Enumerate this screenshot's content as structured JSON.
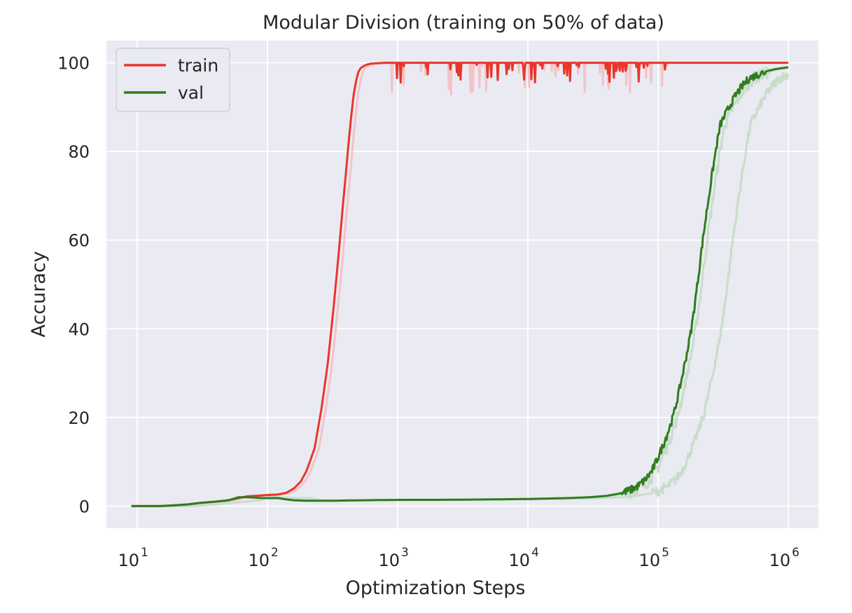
{
  "chart_data": {
    "type": "line",
    "title": "Modular Division (training on 50% of data)",
    "xlabel": "Optimization Steps",
    "ylabel": "Accuracy",
    "xscale": "log",
    "xlim": [
      5.8,
      1700000.0
    ],
    "ylim": [
      -5,
      105
    ],
    "xticks": [
      {
        "value": 10,
        "base": "10",
        "exp": "1"
      },
      {
        "value": 100,
        "base": "10",
        "exp": "2"
      },
      {
        "value": 1000,
        "base": "10",
        "exp": "3"
      },
      {
        "value": 10000,
        "base": "10",
        "exp": "4"
      },
      {
        "value": 100000,
        "base": "10",
        "exp": "5"
      },
      {
        "value": 1000000,
        "base": "10",
        "exp": "6"
      }
    ],
    "yticks": [
      0,
      20,
      40,
      60,
      80,
      100
    ],
    "grid": true,
    "legend": "top-left",
    "colors": {
      "background": "#eaeaf2",
      "train": "#e8362b",
      "val": "#2e7d1e",
      "train_raw": "#f2c4c8",
      "val_raw": "#c9dccb"
    },
    "series": [
      {
        "name": "train",
        "x": [
          9,
          12,
          15,
          20,
          25,
          30,
          40,
          50,
          60,
          70,
          80,
          90,
          100,
          120,
          140,
          160,
          180,
          200,
          230,
          260,
          290,
          320,
          350,
          380,
          400,
          420,
          440,
          460,
          480,
          500,
          520,
          550,
          580,
          620,
          700,
          800,
          1000,
          1500,
          2000,
          3000,
          5000,
          10000,
          20000,
          50000,
          100000,
          1000000
        ],
        "y": [
          0,
          0,
          0,
          0.2,
          0.4,
          0.7,
          1.0,
          1.3,
          1.8,
          2.2,
          2.3,
          2.4,
          2.5,
          2.6,
          3.0,
          4.0,
          5.5,
          8,
          13,
          22,
          32,
          44,
          56,
          68,
          75,
          82,
          88,
          93,
          96,
          98,
          98.8,
          99.3,
          99.6,
          99.8,
          99.9,
          100,
          100,
          100,
          100,
          100,
          100,
          100,
          100,
          100,
          100,
          100
        ]
      },
      {
        "name": "val",
        "x": [
          9,
          12,
          15,
          20,
          25,
          30,
          40,
          50,
          60,
          70,
          80,
          90,
          100,
          120,
          140,
          160,
          200,
          300,
          500,
          1000,
          2000,
          5000,
          10000,
          20000,
          30000,
          40000,
          50000,
          60000,
          70000,
          80000,
          90000,
          100000,
          110000,
          120000,
          130000,
          140000,
          150000,
          160000,
          170000,
          180000,
          190000,
          200000,
          220000,
          240000,
          260000,
          280000,
          300000,
          350000,
          400000,
          450000,
          500000,
          600000,
          700000,
          800000,
          1000000
        ],
        "y": [
          0,
          0,
          0,
          0.2,
          0.4,
          0.7,
          1.0,
          1.3,
          2.0,
          2.0,
          1.9,
          1.8,
          1.8,
          1.8,
          1.5,
          1.3,
          1.2,
          1.2,
          1.3,
          1.4,
          1.4,
          1.5,
          1.6,
          1.8,
          2.0,
          2.3,
          2.8,
          3.5,
          4.5,
          6,
          8,
          11,
          14,
          17,
          20,
          24,
          28,
          32,
          36,
          40,
          45,
          50,
          60,
          68,
          75,
          81,
          86,
          90,
          93,
          95,
          96.5,
          97.5,
          98.2,
          98.6,
          99
        ]
      }
    ]
  }
}
